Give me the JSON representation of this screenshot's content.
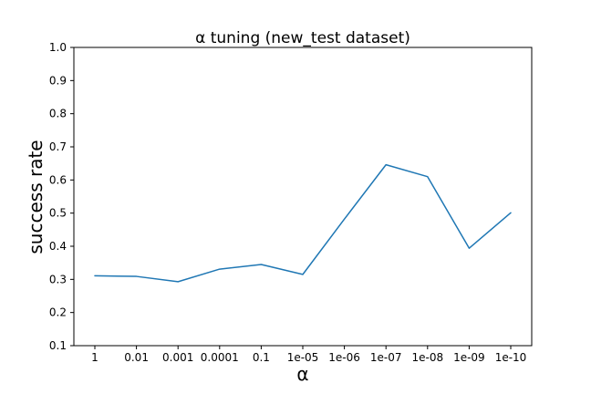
{
  "chart_data": {
    "type": "line",
    "title": "α tuning (new_test dataset)",
    "xlabel": "α",
    "ylabel": "success rate",
    "categories": [
      "1",
      "0.01",
      "0.001",
      "0.0001",
      "0.1",
      "1e-05",
      "1e-06",
      "1e-07",
      "1e-08",
      "1e-09",
      "1e-10"
    ],
    "series": [
      {
        "values": [
          0.311,
          0.309,
          0.293,
          0.331,
          0.345,
          0.315,
          0.482,
          0.646,
          0.61,
          0.394,
          0.501
        ]
      }
    ],
    "ylim": [
      0.1,
      1.0
    ],
    "yticks": [
      "0.1",
      "0.2",
      "0.3",
      "0.4",
      "0.5",
      "0.6",
      "0.7",
      "0.8",
      "0.9",
      "1.0"
    ],
    "grid": false,
    "colors": {
      "line": "#1f77b4",
      "axes": "#000000"
    }
  }
}
